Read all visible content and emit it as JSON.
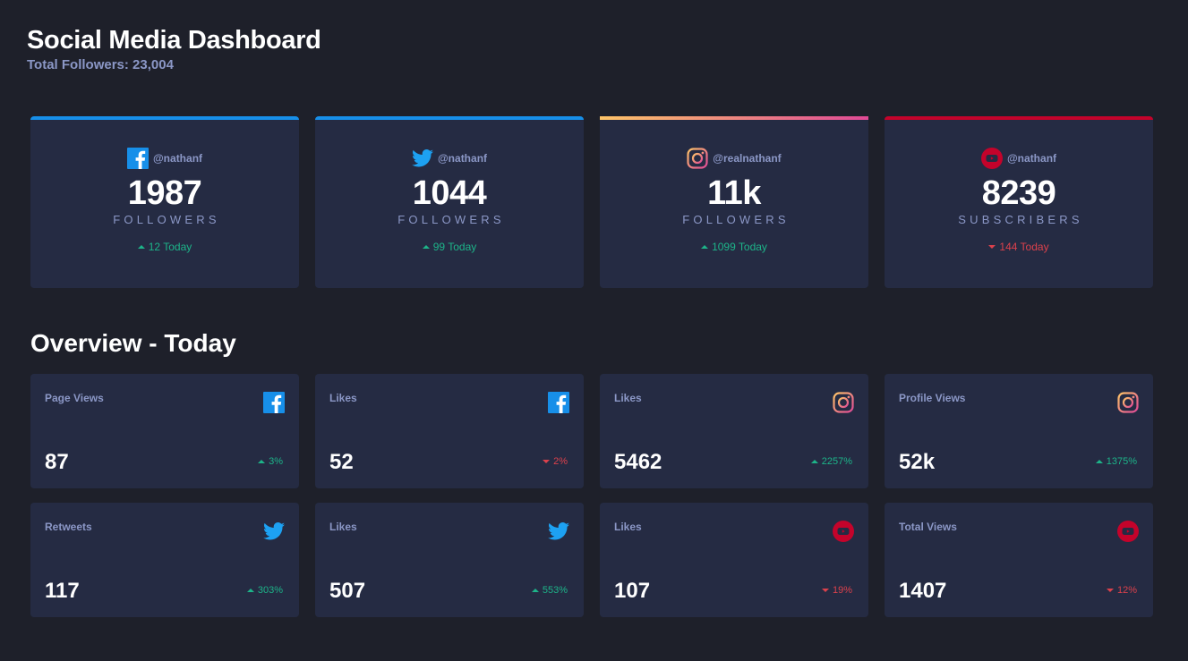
{
  "header": {
    "title": "Social Media Dashboard",
    "subtitle": "Total Followers: 23,004"
  },
  "followers": [
    {
      "platform": "facebook",
      "icon": "facebook-icon",
      "handle": "@nathanf",
      "count": "1987",
      "label": "FOLLOWERS",
      "today": "12 Today",
      "trend": "up"
    },
    {
      "platform": "twitter",
      "icon": "twitter-icon",
      "handle": "@nathanf",
      "count": "1044",
      "label": "FOLLOWERS",
      "today": "99 Today",
      "trend": "up"
    },
    {
      "platform": "instagram",
      "icon": "instagram-icon",
      "handle": "@realnathanf",
      "count": "11k",
      "label": "FOLLOWERS",
      "today": "1099 Today",
      "trend": "up"
    },
    {
      "platform": "youtube",
      "icon": "youtube-icon",
      "handle": "@nathanf",
      "count": "8239",
      "label": "SUBSCRIBERS",
      "today": "144 Today",
      "trend": "down"
    }
  ],
  "overview": {
    "title": "Overview - Today",
    "cards": [
      {
        "label": "Page Views",
        "platform": "facebook",
        "value": "87",
        "pct": "3%",
        "trend": "up"
      },
      {
        "label": "Likes",
        "platform": "facebook",
        "value": "52",
        "pct": "2%",
        "trend": "down"
      },
      {
        "label": "Likes",
        "platform": "instagram",
        "value": "5462",
        "pct": "2257%",
        "trend": "up"
      },
      {
        "label": "Profile Views",
        "platform": "instagram",
        "value": "52k",
        "pct": "1375%",
        "trend": "up"
      },
      {
        "label": "Retweets",
        "platform": "twitter",
        "value": "117",
        "pct": "303%",
        "trend": "up"
      },
      {
        "label": "Likes",
        "platform": "twitter",
        "value": "507",
        "pct": "553%",
        "trend": "up"
      },
      {
        "label": "Likes",
        "platform": "youtube",
        "value": "107",
        "pct": "19%",
        "trend": "down"
      },
      {
        "label": "Total Views",
        "platform": "youtube",
        "value": "1407",
        "pct": "12%",
        "trend": "down"
      }
    ]
  },
  "colors": {
    "background": "#1e202a",
    "card": "#252b43",
    "muted_text": "#8b97c6",
    "up": "#1db489",
    "down": "#dc414c",
    "facebook": "#178fe9",
    "twitter": "#1da1f2",
    "youtube": "#c4032b"
  }
}
